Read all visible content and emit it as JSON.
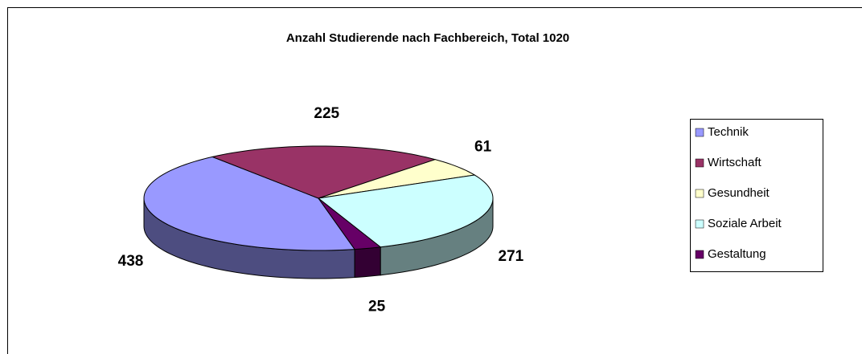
{
  "chart_data": {
    "type": "pie",
    "title": "Anzahl Studierende nach Fachbereich, Total 1020",
    "categories": [
      "Technik",
      "Wirtschaft",
      "Gesundheit",
      "Soziale Arbeit",
      "Gestaltung"
    ],
    "values": [
      438,
      225,
      61,
      271,
      25
    ],
    "colors": [
      "#9999ff",
      "#993366",
      "#ffffcc",
      "#ccffff",
      "#660066"
    ],
    "legend": "right"
  }
}
